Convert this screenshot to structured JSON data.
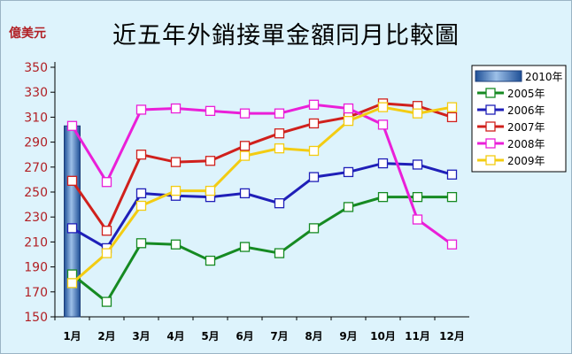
{
  "title": "近五年外銷接單金額同月比較圖",
  "unit_label": "億美元",
  "colors": {
    "background": "#ddf3fc",
    "axis_text": "#b11f24",
    "bar": "#3a6fb4",
    "s2005": "#168a22",
    "s2006": "#1f1fb8",
    "s2007": "#d0201c",
    "s2008": "#ea1fd8",
    "s2009": "#f3cc12"
  },
  "chart_data": {
    "type": "line",
    "title": "近五年外銷接單金額同月比較圖",
    "ylabel": "億美元",
    "xlabel": "",
    "categories": [
      "1月",
      "2月",
      "3月",
      "4月",
      "5月",
      "6月",
      "7月",
      "8月",
      "9月",
      "10月",
      "11月",
      "12月"
    ],
    "ylim": [
      150,
      350
    ],
    "yticks": [
      150,
      170,
      190,
      210,
      230,
      250,
      270,
      290,
      310,
      330,
      350
    ],
    "grid": false,
    "legend": "right",
    "bar_series": {
      "name": "2010年",
      "values": [
        303
      ]
    },
    "series": [
      {
        "name": "2005年",
        "color_key": "s2005",
        "values": [
          184,
          162,
          209,
          208,
          195,
          206,
          201,
          221,
          238,
          246,
          246,
          246
        ]
      },
      {
        "name": "2006年",
        "color_key": "s2006",
        "values": [
          221,
          205,
          249,
          247,
          246,
          249,
          241,
          262,
          266,
          273,
          272,
          264
        ]
      },
      {
        "name": "2007年",
        "color_key": "s2007",
        "values": [
          259,
          219,
          280,
          274,
          275,
          287,
          297,
          305,
          310,
          321,
          319,
          310
        ]
      },
      {
        "name": "2008年",
        "color_key": "s2008",
        "values": [
          303,
          258,
          316,
          317,
          315,
          313,
          313,
          320,
          317,
          304,
          228,
          208
        ]
      },
      {
        "name": "2009年",
        "color_key": "s2009",
        "values": [
          177,
          201,
          239,
          251,
          251,
          279,
          285,
          283,
          307,
          318,
          313,
          318
        ]
      }
    ]
  }
}
